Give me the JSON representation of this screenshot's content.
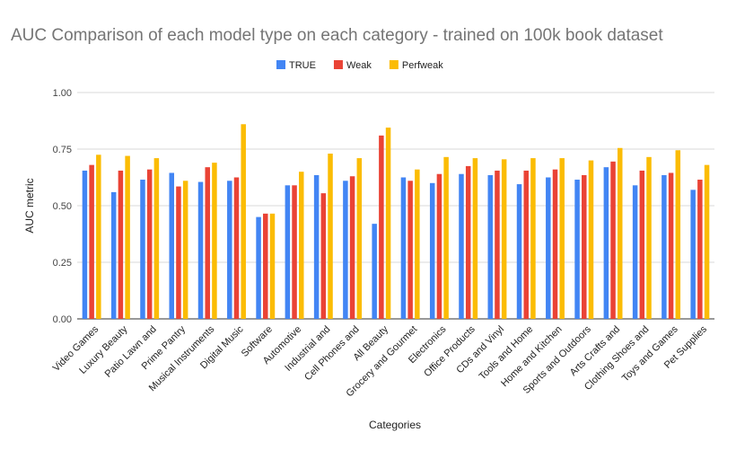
{
  "chart_data": {
    "type": "bar",
    "title": "AUC Comparison of each model type on each category - trained on 100k book dataset",
    "xlabel": "Categories",
    "ylabel": "AUC metric",
    "ylim": [
      0,
      1
    ],
    "yticks": [
      "0.00",
      "0.25",
      "0.50",
      "0.75",
      "1.00"
    ],
    "grid": true,
    "legend_position": "top",
    "categories": [
      "Video Games",
      "Luxury Beauty",
      "Patio Lawn and",
      "Prime Pantry",
      "Musical Instruments",
      "Digital Music",
      "Software",
      "Automotive",
      "Industrial and",
      "Cell Phones and",
      "All Beauty",
      "Grocery and Gourmet",
      "Electronics",
      "Office Products",
      "CDs and Vinyl",
      "Tools and Home",
      "Home and Kitchen",
      "Sports and Outdoors",
      "Arts Crafts and",
      "Clothing Shoes and",
      "Toys and Games",
      "Pet Supplies"
    ],
    "series": [
      {
        "name": "TRUE",
        "color": "#4285f4",
        "values": [
          0.655,
          0.56,
          0.615,
          0.645,
          0.605,
          0.61,
          0.45,
          0.59,
          0.635,
          0.61,
          0.42,
          0.625,
          0.6,
          0.64,
          0.635,
          0.595,
          0.625,
          0.615,
          0.67,
          0.59,
          0.635,
          0.57
        ]
      },
      {
        "name": "Weak",
        "color": "#ea4335",
        "values": [
          0.68,
          0.655,
          0.66,
          0.585,
          0.67,
          0.625,
          0.465,
          0.59,
          0.555,
          0.63,
          0.81,
          0.61,
          0.64,
          0.675,
          0.655,
          0.655,
          0.66,
          0.635,
          0.695,
          0.655,
          0.645,
          0.615
        ]
      },
      {
        "name": "Perfweak",
        "color": "#fbbc04",
        "values": [
          0.725,
          0.72,
          0.71,
          0.61,
          0.69,
          0.86,
          0.465,
          0.65,
          0.73,
          0.71,
          0.845,
          0.66,
          0.715,
          0.71,
          0.705,
          0.71,
          0.71,
          0.7,
          0.755,
          0.715,
          0.745,
          0.68
        ]
      }
    ]
  }
}
